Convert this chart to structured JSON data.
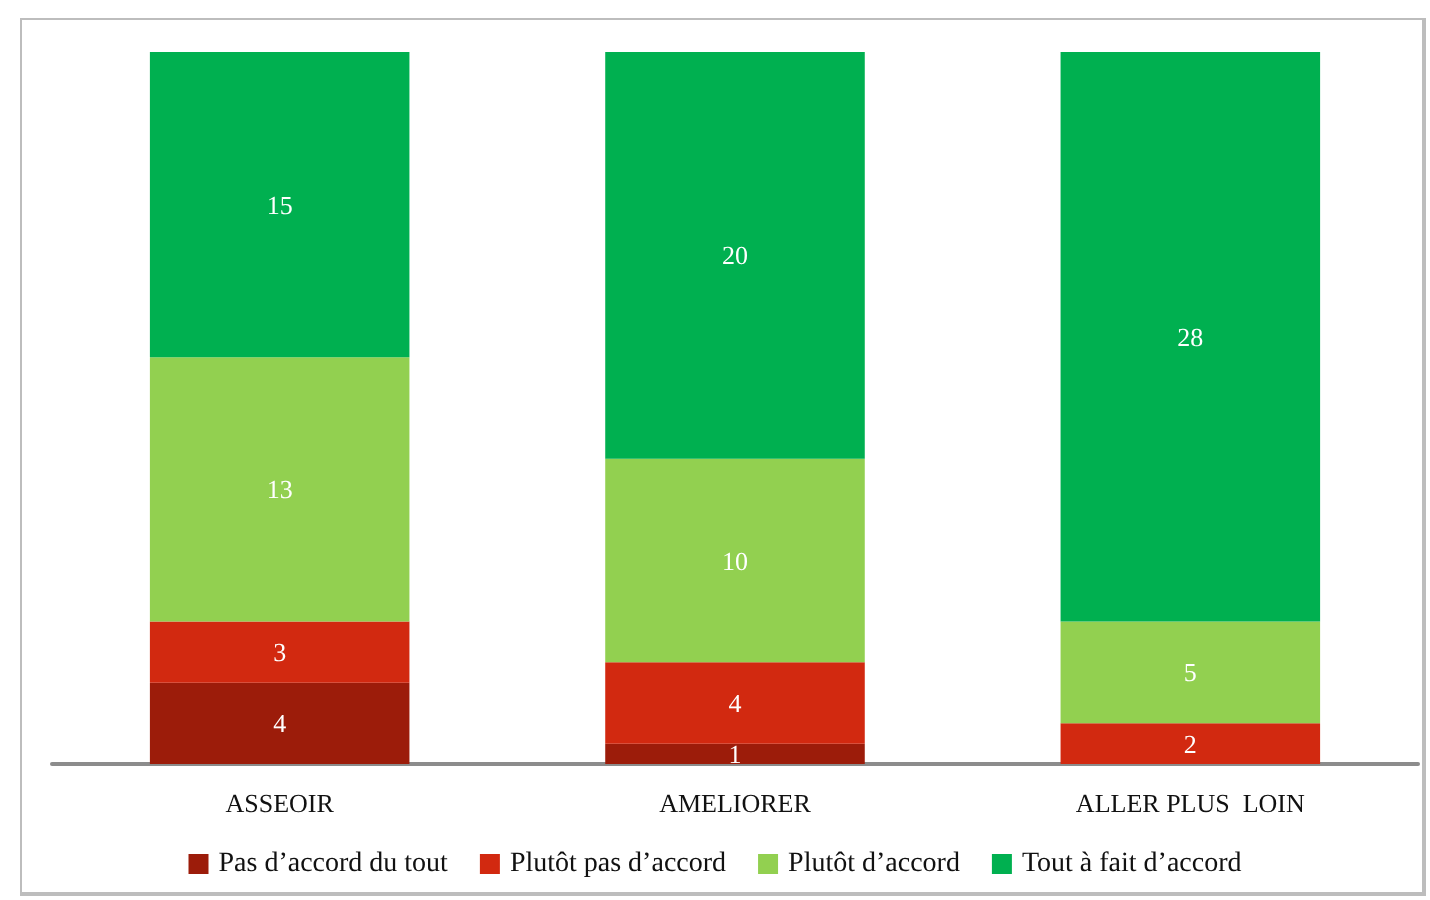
{
  "chart_data": {
    "type": "bar",
    "stacked": true,
    "categories": [
      "ASSEOIR",
      "AMELIORER",
      "ALLER PLUS  LOIN"
    ],
    "series": [
      {
        "name": "Pas d’accord du tout",
        "color": "#9c1c0a",
        "values": [
          4,
          1,
          null
        ]
      },
      {
        "name": "Plutôt pas d’accord",
        "color": "#d22910",
        "values": [
          3,
          4,
          2
        ]
      },
      {
        "name": "Plutôt d’accord",
        "color": "#92d050",
        "values": [
          13,
          10,
          5
        ]
      },
      {
        "name": "Tout à fait d’accord",
        "color": "#00b050",
        "values": [
          15,
          20,
          28
        ]
      }
    ],
    "data_labels": true,
    "legend": "bottom",
    "tick_labels": "x"
  }
}
